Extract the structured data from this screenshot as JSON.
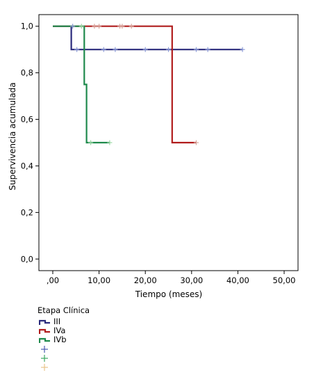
{
  "chart_data": {
    "type": "line",
    "xlabel": "Tiempo (meses)",
    "ylabel": "Supervivencia acumulada",
    "xlim": [
      -3,
      53
    ],
    "ylim": [
      -0.05,
      1.05
    ],
    "x_ticks": [
      0,
      10,
      20,
      30,
      40,
      50
    ],
    "x_tick_labels": [
      ",00",
      "10,00",
      "20,00",
      "30,00",
      "40,00",
      "50,00"
    ],
    "y_ticks": [
      0,
      0.2,
      0.4,
      0.6,
      0.8,
      1.0
    ],
    "y_tick_labels": [
      "0,0",
      "0,2",
      "0,4",
      "0,6",
      "0,8",
      "1,0"
    ],
    "grid": false,
    "legend_position": "bottom-left",
    "legend_title": "Etapa Clínica",
    "series": [
      {
        "name": "III",
        "color": "#2a2a7c",
        "censor_color": "#8a9ad8",
        "steps": [
          [
            0,
            1.0
          ],
          [
            4,
            1.0
          ],
          [
            4,
            0.9
          ],
          [
            41,
            0.9
          ]
        ],
        "censored": [
          [
            4.3,
            1.0
          ],
          [
            5.2,
            0.9
          ],
          [
            11,
            0.9
          ],
          [
            13.5,
            0.9
          ],
          [
            20,
            0.9
          ],
          [
            25,
            0.9
          ],
          [
            31,
            0.9
          ],
          [
            33.5,
            0.9
          ],
          [
            41,
            0.9
          ]
        ]
      },
      {
        "name": "IVa",
        "color": "#b01c1c",
        "censor_color": "#d8a49a",
        "steps": [
          [
            0,
            1.0
          ],
          [
            25.8,
            1.0
          ],
          [
            25.8,
            0.5
          ],
          [
            31,
            0.5
          ]
        ],
        "censored": [
          [
            9,
            1.0
          ],
          [
            10,
            1.0
          ],
          [
            14.5,
            1.0
          ],
          [
            15,
            1.0
          ],
          [
            17,
            1.0
          ],
          [
            31,
            0.5
          ]
        ]
      },
      {
        "name": "IVb",
        "color": "#1f8a4c",
        "censor_color": "#9ad8a4",
        "steps": [
          [
            0,
            1.0
          ],
          [
            6.8,
            1.0
          ],
          [
            6.8,
            0.75
          ],
          [
            7.3,
            0.75
          ],
          [
            7.3,
            0.5
          ],
          [
            12.3,
            0.5
          ]
        ],
        "censored": [
          [
            6.2,
            1.0
          ],
          [
            8.2,
            0.5
          ],
          [
            12.3,
            0.5
          ]
        ]
      }
    ],
    "censor_legend": [
      {
        "label": "",
        "color": "#4a5ab0"
      },
      {
        "label": "",
        "color": "#3aa860"
      },
      {
        "label": "",
        "color": "#e8c48c"
      }
    ]
  }
}
